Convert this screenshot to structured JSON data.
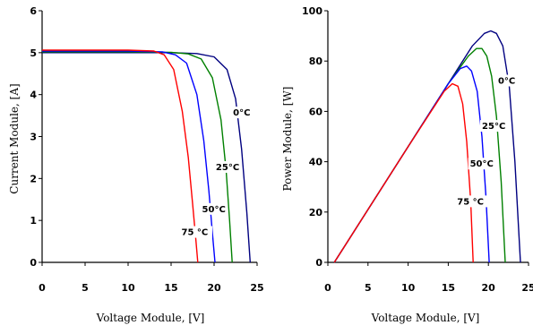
{
  "chart_data": [
    {
      "type": "line",
      "title": "",
      "xlabel": "Voltage Module, [V]",
      "ylabel": "Current Module, [A]",
      "xlim": [
        0,
        25
      ],
      "ylim": [
        0,
        6
      ],
      "xticks": [
        "0",
        "5",
        "10",
        "15",
        "20",
        "25"
      ],
      "yticks": [
        "0",
        "1",
        "2",
        "3",
        "4",
        "5",
        "6"
      ],
      "grid": false,
      "series": [
        {
          "name": "0°C",
          "color": "#000080",
          "x": [
            0,
            5,
            10,
            15,
            18,
            20,
            21.5,
            22.5,
            23.2,
            23.8,
            24.2
          ],
          "y": [
            5.0,
            5.0,
            5.0,
            5.0,
            4.98,
            4.9,
            4.6,
            3.9,
            2.7,
            1.2,
            0
          ]
        },
        {
          "name": "25°C",
          "color": "#008000",
          "x": [
            0,
            5,
            10,
            15,
            17,
            18.5,
            19.8,
            20.8,
            21.4,
            21.8,
            22.1
          ],
          "y": [
            5.02,
            5.02,
            5.02,
            5.01,
            4.97,
            4.85,
            4.4,
            3.4,
            2.2,
            1.0,
            0
          ]
        },
        {
          "name": "50°C",
          "color": "#0000ff",
          "x": [
            0,
            5,
            10,
            14,
            15.5,
            16.8,
            18,
            18.8,
            19.4,
            19.8,
            20.1
          ],
          "y": [
            5.04,
            5.04,
            5.04,
            5.02,
            4.95,
            4.75,
            4.0,
            2.9,
            1.7,
            0.7,
            0
          ]
        },
        {
          "name": "75 °C",
          "color": "#ff0000",
          "x": [
            0,
            5,
            10,
            13,
            14.2,
            15.3,
            16.3,
            17,
            17.5,
            17.9,
            18.1
          ],
          "y": [
            5.06,
            5.06,
            5.06,
            5.04,
            4.95,
            4.6,
            3.6,
            2.5,
            1.4,
            0.5,
            0
          ]
        }
      ],
      "annotations": [
        {
          "text": "0°C",
          "x": 22.2,
          "y": 3.5
        },
        {
          "text": "25°C",
          "x": 20.2,
          "y": 2.2
        },
        {
          "text": "50°C",
          "x": 18.6,
          "y": 1.2
        },
        {
          "text": "75 °C",
          "x": 16.2,
          "y": 0.65
        }
      ]
    },
    {
      "type": "line",
      "title": "",
      "xlabel": "Voltage Module, [V]",
      "ylabel": "Power Module, [W]",
      "xlim": [
        0,
        25
      ],
      "ylim": [
        0,
        100
      ],
      "xticks": [
        "0",
        "5",
        "10",
        "15",
        "20",
        "25"
      ],
      "yticks": [
        "0",
        "20",
        "40",
        "60",
        "80",
        "100"
      ],
      "grid": false,
      "series": [
        {
          "name": "0°C",
          "color": "#000080",
          "x": [
            0.8,
            5,
            10,
            15,
            18,
            19.5,
            20.3,
            21,
            21.8,
            22.6,
            23.3,
            24
          ],
          "y": [
            0,
            21,
            46,
            71,
            86,
            91,
            92,
            91,
            86,
            70,
            40,
            0
          ]
        },
        {
          "name": "25°C",
          "color": "#008000",
          "x": [
            0.8,
            5,
            10,
            15,
            17.5,
            18.5,
            19.2,
            19.8,
            20.4,
            21,
            21.6,
            22.1
          ],
          "y": [
            0,
            21,
            46,
            71,
            82,
            85,
            85,
            82,
            74,
            58,
            32,
            0
          ]
        },
        {
          "name": "50°C",
          "color": "#0000ff",
          "x": [
            0.8,
            5,
            10,
            15,
            16.5,
            17.3,
            17.9,
            18.6,
            19.2,
            19.7,
            20.1
          ],
          "y": [
            0,
            21,
            46,
            71,
            77,
            78,
            76,
            68,
            50,
            26,
            0
          ]
        },
        {
          "name": "75 °C",
          "color": "#ff0000",
          "x": [
            0.8,
            5,
            10,
            14.5,
            15.5,
            16.2,
            16.8,
            17.3,
            17.8,
            18.1
          ],
          "y": [
            0,
            21,
            46,
            68,
            71,
            70,
            63,
            48,
            24,
            0
          ]
        }
      ],
      "annotations": [
        {
          "text": "0°C",
          "x": 21.2,
          "y": 71
        },
        {
          "text": "25°C",
          "x": 19.2,
          "y": 53
        },
        {
          "text": "50°C",
          "x": 17.7,
          "y": 38
        },
        {
          "text": "75 °C",
          "x": 16.1,
          "y": 23
        }
      ]
    }
  ]
}
